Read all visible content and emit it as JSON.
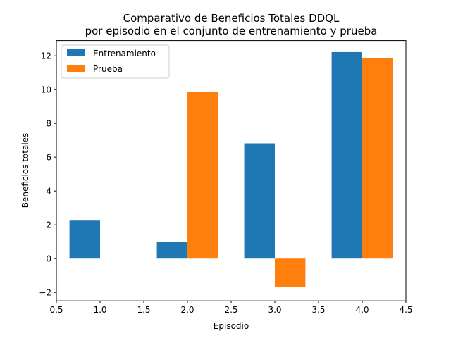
{
  "chart_data": {
    "type": "bar",
    "title_lines": [
      "Comparativo de Beneficios Totales DDQL",
      "por episodio en el conjunto de entrenamiento y prueba"
    ],
    "xlabel": "Episodio",
    "ylabel": "Beneficios totales",
    "x": [
      1,
      2,
      3,
      4
    ],
    "bar_width": 0.35,
    "series": [
      {
        "name": "Entrenamiento",
        "color": "#1f77b4",
        "offset": -0.175,
        "values": [
          2.25,
          0.98,
          6.82,
          12.22
        ]
      },
      {
        "name": "Prueba",
        "color": "#ff7f0e",
        "offset": 0.175,
        "values": [
          0.0,
          9.85,
          -1.7,
          11.85
        ]
      }
    ],
    "xlim": [
      0.5,
      4.5
    ],
    "ylim": [
      -2.5,
      12.9
    ],
    "xticks": [
      0.5,
      1.0,
      1.5,
      2.0,
      2.5,
      3.0,
      3.5,
      4.0,
      4.5
    ],
    "xtick_labels": [
      "0.5",
      "1.0",
      "1.5",
      "2.0",
      "2.5",
      "3.0",
      "3.5",
      "4.0",
      "4.5"
    ],
    "yticks": [
      -2,
      0,
      2,
      4,
      6,
      8,
      10,
      12
    ],
    "ytick_labels": [
      "−2",
      "0",
      "2",
      "4",
      "6",
      "8",
      "10",
      "12"
    ],
    "grid": false,
    "legend_position": "top-left"
  }
}
